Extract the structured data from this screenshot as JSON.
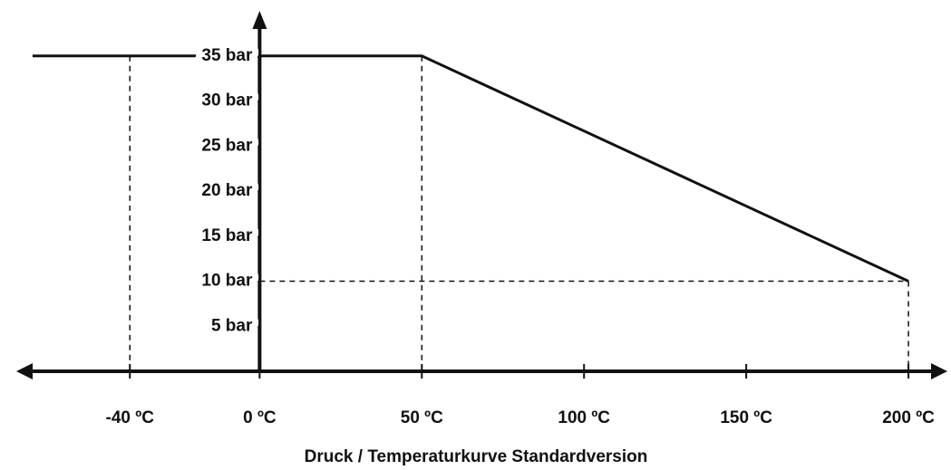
{
  "chart_data": {
    "type": "line",
    "title": "Druck / Temperaturkurve  Standardversion",
    "x": [
      -70,
      -40,
      50,
      200
    ],
    "series": [
      {
        "color": "#111111",
        "values": [
          35,
          35,
          35,
          10
        ]
      }
    ],
    "xlim": [
      -75,
      212
    ],
    "ylim": [
      0,
      40
    ],
    "xticks": [
      {
        "value": -40,
        "label": "-40 ºC"
      },
      {
        "value": 0,
        "label": "0 ºC"
      },
      {
        "value": 50,
        "label": "50 ºC"
      },
      {
        "value": 100,
        "label": "100 ºC"
      },
      {
        "value": 150,
        "label": "150 ºC"
      },
      {
        "value": 200,
        "label": "200 ºC"
      }
    ],
    "yticks": [
      {
        "value": 5,
        "label": "5 bar"
      },
      {
        "value": 10,
        "label": "10 bar"
      },
      {
        "value": 15,
        "label": "15 bar"
      },
      {
        "value": 20,
        "label": "20 bar"
      },
      {
        "value": 25,
        "label": "25 bar"
      },
      {
        "value": 30,
        "label": "30 bar"
      },
      {
        "value": 35,
        "label": "35 bar"
      }
    ]
  }
}
